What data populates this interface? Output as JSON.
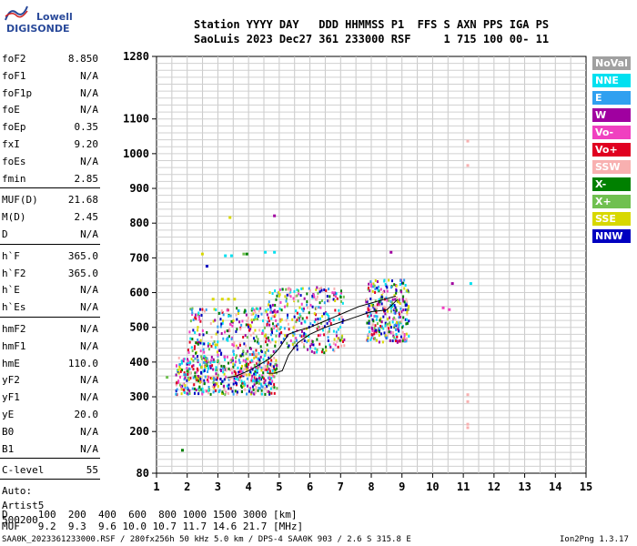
{
  "logo": {
    "line1": "Lowell",
    "line2": "DIGISONDE"
  },
  "header": {
    "row1": "Station YYYY DAY   DDD HHMMSS P1  FFS S AXN PPS IGA PS",
    "row2": "SaoLuis 2023 Dec27 361 233000 RSF     1 715 100 00- 11"
  },
  "params_group1": [
    {
      "k": "foF2",
      "v": "8.850"
    },
    {
      "k": "foF1",
      "v": "N/A"
    },
    {
      "k": "foF1p",
      "v": "N/A"
    },
    {
      "k": "foE",
      "v": "N/A"
    },
    {
      "k": "foEp",
      "v": "0.35"
    },
    {
      "k": "fxI",
      "v": "9.20"
    },
    {
      "k": "foEs",
      "v": "N/A"
    },
    {
      "k": "fmin",
      "v": "2.85"
    }
  ],
  "params_group2": [
    {
      "k": "MUF(D)",
      "v": "21.68"
    },
    {
      "k": "M(D)",
      "v": "2.45"
    },
    {
      "k": "D",
      "v": "N/A"
    }
  ],
  "params_group3": [
    {
      "k": "h`F",
      "v": "365.0"
    },
    {
      "k": "h`F2",
      "v": "365.0"
    },
    {
      "k": "h`E",
      "v": "N/A"
    },
    {
      "k": "h`Es",
      "v": "N/A"
    }
  ],
  "params_group4": [
    {
      "k": "hmF2",
      "v": "N/A"
    },
    {
      "k": "hmF1",
      "v": "N/A"
    },
    {
      "k": "hmE",
      "v": "110.0"
    },
    {
      "k": "yF2",
      "v": "N/A"
    },
    {
      "k": "yF1",
      "v": "N/A"
    },
    {
      "k": "yE",
      "v": "20.0"
    },
    {
      "k": "B0",
      "v": "N/A"
    },
    {
      "k": "B1",
      "v": "N/A"
    }
  ],
  "clevel": {
    "k": "C-level",
    "v": "55"
  },
  "auto": {
    "line1": "Auto:",
    "line2": "Artist5",
    "line3": "500200"
  },
  "legend": [
    {
      "label": "NoVal",
      "color": "#a0a0a0"
    },
    {
      "label": "NNE",
      "color": "#00e0f0"
    },
    {
      "label": "E",
      "color": "#30a0f0"
    },
    {
      "label": "W",
      "color": "#a000a0"
    },
    {
      "label": "Vo-",
      "color": "#f040c0"
    },
    {
      "label": "Vo+",
      "color": "#e00020"
    },
    {
      "label": "SSW",
      "color": "#f8b0b0"
    },
    {
      "label": "X-",
      "color": "#008000"
    },
    {
      "label": "X+",
      "color": "#70c050"
    },
    {
      "label": "SSE",
      "color": "#d8d800"
    },
    {
      "label": "NNW",
      "color": "#0000c0"
    }
  ],
  "muf_table": {
    "d_row": "D     100  200  400  600  800 1000 1500 3000 [km]",
    "muf_row": "MUF   9.2  9.3  9.6 10.0 10.7 11.7 14.6 21.7 [MHz]"
  },
  "footer": {
    "left": "SAA0K_2023361233000.RSF / 280fx256h 50 kHz 5.0 km / DPS-4 SAA0K 903 / 2.6 S 315.8 E",
    "right": "Ion2Png 1.3.17"
  },
  "chart_data": {
    "type": "scatter",
    "xlabel": "",
    "ylabel": "",
    "xlim": [
      1,
      15
    ],
    "ylim": [
      80,
      1280
    ],
    "x_ticks": [
      1,
      2,
      3,
      4,
      5,
      6,
      7,
      8,
      9,
      10,
      11,
      12,
      13,
      14,
      15
    ],
    "y_ticks": [
      80,
      200,
      300,
      400,
      500,
      600,
      700,
      800,
      900,
      1000,
      1100,
      1280
    ],
    "grid": true,
    "profile_line": {
      "x": [
        4.6,
        4.85,
        5.1,
        5.3,
        5.6,
        6.0,
        6.5,
        7.0,
        7.5,
        8.0,
        8.5,
        8.85
      ],
      "y": [
        368,
        368,
        375,
        420,
        455,
        480,
        500,
        515,
        530,
        545,
        550,
        580
      ]
    },
    "trace_line": {
      "x": [
        3.3,
        3.6,
        4.0,
        4.4,
        4.7,
        5.0,
        5.3,
        5.6,
        6.0,
        6.4,
        6.8,
        7.2,
        7.6,
        8.0,
        8.4,
        8.8
      ],
      "y": [
        355,
        360,
        375,
        395,
        410,
        440,
        480,
        490,
        500,
        515,
        530,
        545,
        560,
        570,
        580,
        590
      ]
    },
    "echo_clusters": [
      {
        "x": [
          1.6,
          4.9
        ],
        "y": [
          310,
          420
        ],
        "n": 520
      },
      {
        "x": [
          2.0,
          4.9
        ],
        "y": [
          420,
          560
        ],
        "n": 260
      },
      {
        "x": [
          4.6,
          7.1
        ],
        "y": [
          430,
          620
        ],
        "n": 300
      },
      {
        "x": [
          7.8,
          9.2
        ],
        "y": [
          460,
          640
        ],
        "n": 300
      }
    ],
    "isolated_points": [
      {
        "x": 2.8,
        "y": 585,
        "c": "SSE"
      },
      {
        "x": 3.1,
        "y": 585,
        "c": "SSE"
      },
      {
        "x": 3.3,
        "y": 585,
        "c": "SSE"
      },
      {
        "x": 3.5,
        "y": 585,
        "c": "SSE"
      },
      {
        "x": 3.2,
        "y": 710,
        "c": "NNE"
      },
      {
        "x": 3.4,
        "y": 710,
        "c": "NNE"
      },
      {
        "x": 3.8,
        "y": 715,
        "c": "X+"
      },
      {
        "x": 3.9,
        "y": 715,
        "c": "X-"
      },
      {
        "x": 4.5,
        "y": 720,
        "c": "NNE"
      },
      {
        "x": 4.8,
        "y": 720,
        "c": "NNE"
      },
      {
        "x": 3.35,
        "y": 820,
        "c": "SSE"
      },
      {
        "x": 2.45,
        "y": 715,
        "c": "SSE"
      },
      {
        "x": 4.8,
        "y": 825,
        "c": "W"
      },
      {
        "x": 2.6,
        "y": 680,
        "c": "NNW"
      },
      {
        "x": 1.8,
        "y": 150,
        "c": "X-"
      },
      {
        "x": 1.3,
        "y": 360,
        "c": "X+"
      },
      {
        "x": 10.6,
        "y": 630,
        "c": "W"
      },
      {
        "x": 11.2,
        "y": 630,
        "c": "NNE"
      },
      {
        "x": 10.3,
        "y": 560,
        "c": "Vo-"
      },
      {
        "x": 10.5,
        "y": 555,
        "c": "Vo-"
      },
      {
        "x": 11.1,
        "y": 1040,
        "c": "SSW"
      },
      {
        "x": 11.1,
        "y": 970,
        "c": "SSW"
      },
      {
        "x": 11.1,
        "y": 310,
        "c": "SSW"
      },
      {
        "x": 11.1,
        "y": 290,
        "c": "SSW"
      },
      {
        "x": 11.1,
        "y": 225,
        "c": "SSW"
      },
      {
        "x": 11.1,
        "y": 215,
        "c": "SSW"
      },
      {
        "x": 8.6,
        "y": 720,
        "c": "W"
      }
    ]
  }
}
